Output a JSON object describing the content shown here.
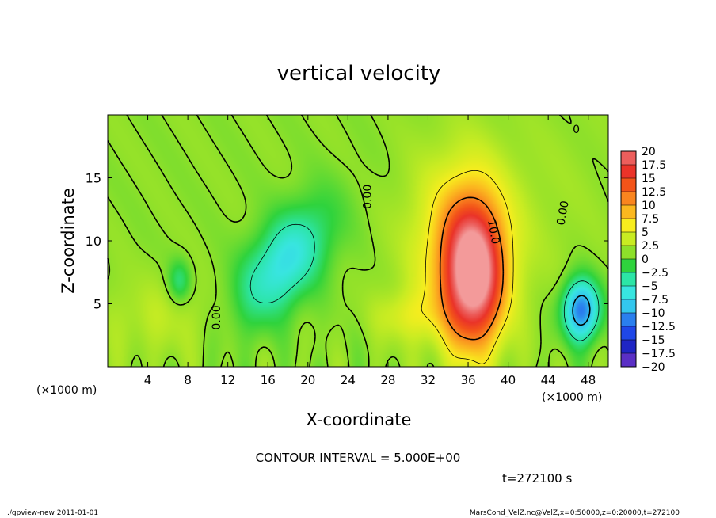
{
  "chart_data": {
    "type": "heatmap",
    "title": "vertical velocity",
    "xlabel": "X-coordinate",
    "ylabel": "Z-coordinate",
    "x_unit_left": "(×1000 m)",
    "x_unit_right": "(×1000 m)",
    "xlim": [
      0,
      50
    ],
    "ylim": [
      0,
      20
    ],
    "x_ticks": [
      4,
      8,
      12,
      16,
      20,
      24,
      28,
      32,
      36,
      40,
      44,
      48
    ],
    "y_ticks": [
      5,
      10,
      15
    ],
    "contour_labels": [
      {
        "text": "0.00",
        "x": 26.0,
        "y": 13.5,
        "rot": -90
      },
      {
        "text": "10.0",
        "x": 38.5,
        "y": 10.7,
        "rot": 80
      },
      {
        "text": "0.00",
        "x": 45.5,
        "y": 12.2,
        "rot": -80
      },
      {
        "text": "0.00",
        "x": 10.9,
        "y": 3.9,
        "rot": -90
      },
      {
        "text": "0",
        "x": 46.8,
        "y": 18.8,
        "rot": 0
      }
    ],
    "features": [
      {
        "kind": "updraft",
        "cx": 36.5,
        "cy": 7.2,
        "sx": 2.0,
        "sy": 3.8,
        "peak": 20
      },
      {
        "kind": "updraft",
        "cx": 35.6,
        "cy": 9.8,
        "sx": 3.6,
        "sy": 4.8,
        "peak": 7
      },
      {
        "kind": "downdraft",
        "cx": 17.6,
        "cy": 8.2,
        "sx": 2.7,
        "sy": 3.2,
        "peak": -8,
        "tilt": 0.55
      },
      {
        "kind": "downdraft",
        "cx": 47.3,
        "cy": 4.5,
        "sx": 1.3,
        "sy": 1.7,
        "peak": -13
      },
      {
        "kind": "downdraft",
        "cx": 7.2,
        "cy": 6.8,
        "sx": 0.8,
        "sy": 1.2,
        "peak": -4
      },
      {
        "kind": "updraft",
        "cx": 30.0,
        "cy": 4.0,
        "sx": 2.3,
        "sy": 1.4,
        "peak": 3.2
      },
      {
        "kind": "updraft",
        "cx": 5.0,
        "cy": 3.8,
        "sx": 4.5,
        "sy": 2.2,
        "peak": 1.8
      },
      {
        "kind": "updraft",
        "cx": 45.3,
        "cy": 13.0,
        "sx": 3.5,
        "sy": 6.0,
        "peak": 0.6
      }
    ],
    "colorbar": {
      "labels": [
        "20",
        "17.5",
        "15",
        "12.5",
        "10",
        "7.5",
        "5",
        "2.5",
        "0",
        "−2.5",
        "−5",
        "−7.5",
        "−10",
        "−12.5",
        "−15",
        "−17.5",
        "−20"
      ],
      "colors": [
        "#f39a9a",
        "#ec5e5c",
        "#ea3329",
        "#f35419",
        "#f9851f",
        "#fbb81f",
        "#f8ed1e",
        "#c9ec22",
        "#8de02a",
        "#2fd33d",
        "#2ce5a6",
        "#38e5e0",
        "#33c7ee",
        "#2a7fee",
        "#1f47e8",
        "#1f25c4",
        "#5a2fc5"
      ],
      "band_edges": [
        20,
        17.5,
        15,
        12.5,
        10,
        7.5,
        5,
        2.5,
        0,
        -2.5,
        -5,
        -7.5,
        -10,
        -12.5,
        -15,
        -17.5,
        -20
      ]
    },
    "contour_interval_text": "CONTOUR INTERVAL = 5.000E+00",
    "time_text": "t=272100 s"
  },
  "footer": {
    "left": "./gpview-new   2011-01-01",
    "right": "MarsCond_VelZ.nc@VelZ,x=0:50000,z=0:20000,t=272100"
  }
}
